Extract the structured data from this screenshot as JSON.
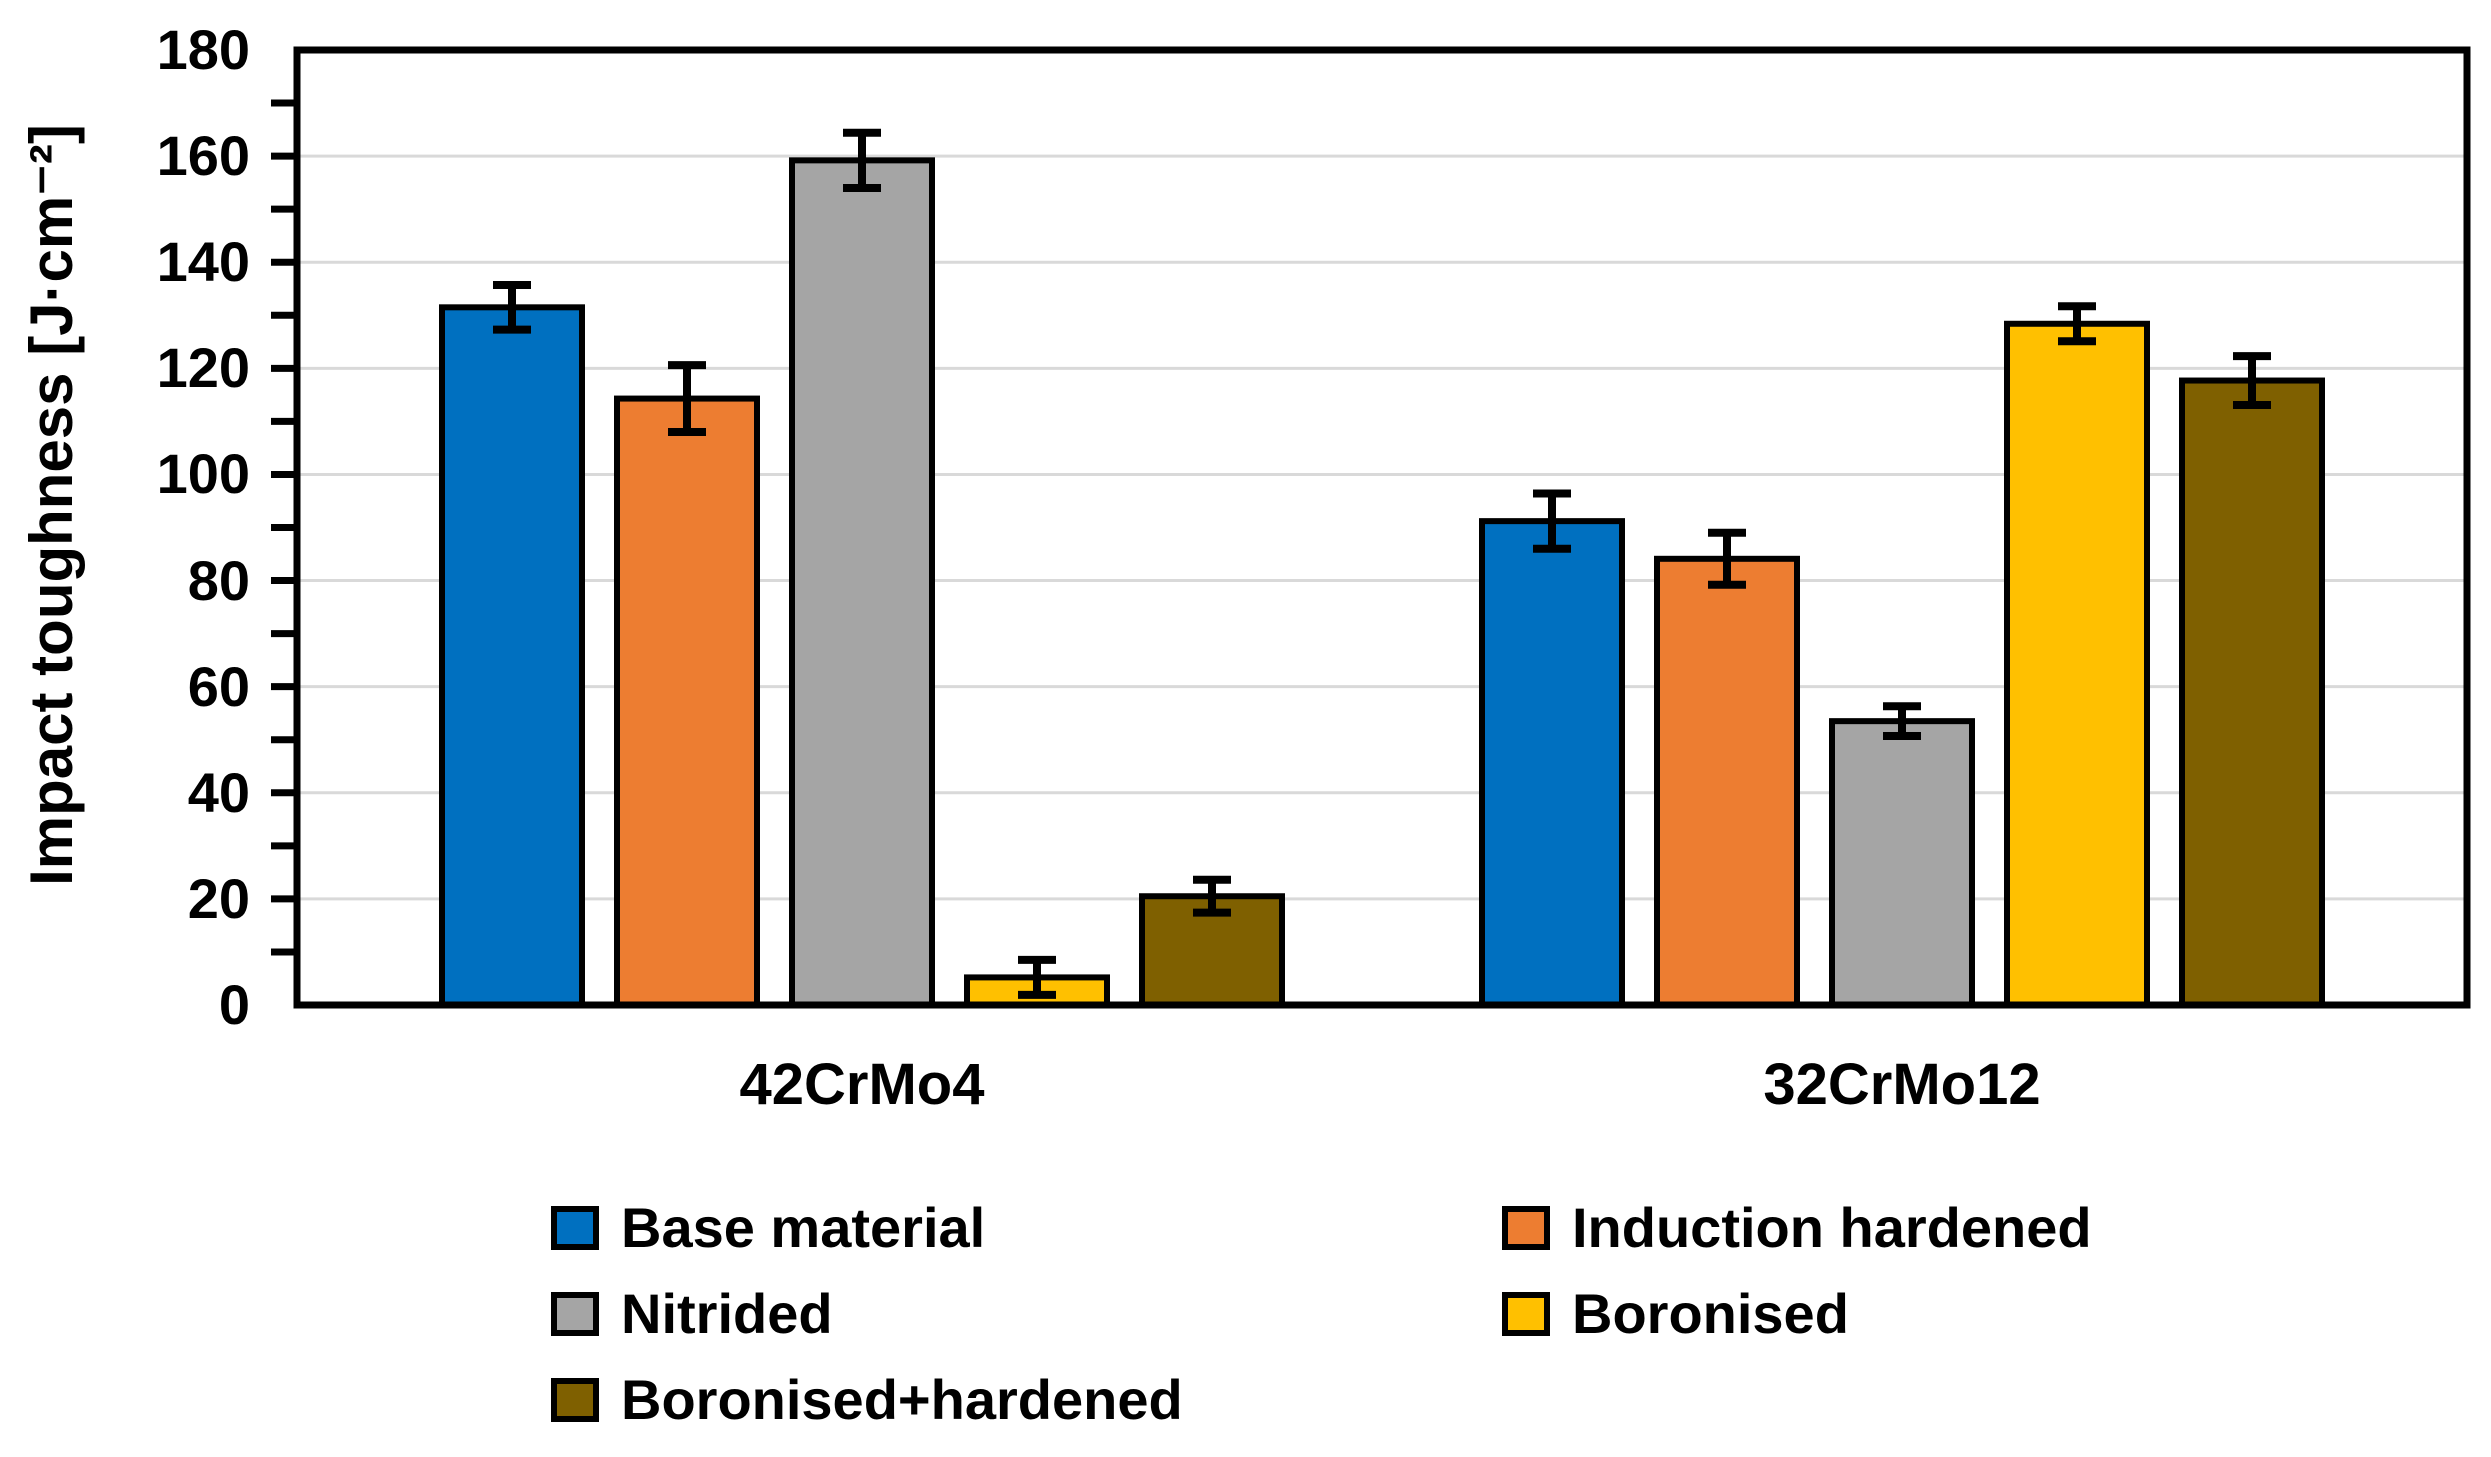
{
  "chart_data": {
    "type": "bar",
    "title": "",
    "xlabel": "",
    "ylabel": "Impact toughness [J·cm⁻²]",
    "categories": [
      "42CrMo4",
      "32CrMo12"
    ],
    "series": [
      {
        "name": "Base material",
        "color": "#0070C0",
        "values": [
          131.5,
          91.2
        ],
        "errors": [
          4.2,
          5.2
        ]
      },
      {
        "name": "Induction hardened",
        "color": "#ED7D31",
        "values": [
          114.3,
          84.1
        ],
        "errors": [
          6.3,
          4.9
        ]
      },
      {
        "name": "Nitrided",
        "color": "#A5A5A5",
        "values": [
          159.2,
          53.5
        ],
        "errors": [
          5.2,
          2.8
        ]
      },
      {
        "name": "Boronised",
        "color": "#FFC000",
        "values": [
          5.2,
          128.4
        ],
        "errors": [
          3.3,
          3.3
        ]
      },
      {
        "name": "Boronised+hardened",
        "color": "#7F6000",
        "values": [
          20.5,
          117.7
        ],
        "errors": [
          3.1,
          4.6
        ]
      }
    ],
    "ylim": [
      0,
      180
    ],
    "ytick_step": 20,
    "minor_tick_step": 10,
    "grid": true,
    "gridline_color": "#D9D9D9",
    "axis_color": "#000000",
    "error_bar_color": "#000000",
    "legend_position": "bottom",
    "legend_columns": 2
  }
}
